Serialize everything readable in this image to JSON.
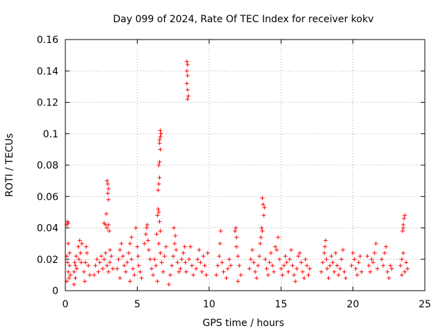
{
  "chart_data": {
    "type": "scatter",
    "title": "Day 099 of 2024, Rate Of TEC Index for receiver kokv",
    "xlabel": "GPS time / hours",
    "ylabel": "ROTI / TECUs",
    "xlim": [
      0,
      25
    ],
    "ylim": [
      0,
      0.16
    ],
    "xticks": [
      0,
      5,
      10,
      15,
      20,
      25
    ],
    "xtick_labels": [
      "0",
      "5",
      "10",
      "15",
      "20",
      "25"
    ],
    "yticks": [
      0,
      0.02,
      0.04,
      0.06,
      0.08,
      0.1,
      0.12,
      0.14,
      0.16
    ],
    "ytick_labels": [
      "0",
      "0.02",
      "0.04",
      "0.06",
      "0.08",
      "0.1",
      "0.12",
      "0.14",
      "0.16"
    ],
    "grid": true,
    "marker": "+",
    "color": "#ff0000",
    "series": [
      {
        "name": "ROTI",
        "points": [
          [
            0.1,
            0.042
          ],
          [
            0.15,
            0.044
          ],
          [
            0.2,
            0.043
          ],
          [
            0.1,
            0.022
          ],
          [
            0.15,
            0.018
          ],
          [
            0.2,
            0.012
          ],
          [
            0.25,
            0.008
          ],
          [
            0.3,
            0.016
          ],
          [
            0.2,
            0.03
          ],
          [
            0.35,
            0.01
          ],
          [
            0.1,
            0.006
          ],
          [
            0.3,
            0.024
          ],
          [
            0.6,
            0.012
          ],
          [
            0.65,
            0.018
          ],
          [
            0.7,
            0.008
          ],
          [
            0.75,
            0.022
          ],
          [
            0.8,
            0.014
          ],
          [
            0.6,
            0.004
          ],
          [
            0.7,
            0.016
          ],
          [
            0.9,
            0.028
          ],
          [
            1.0,
            0.032
          ],
          [
            1.05,
            0.024
          ],
          [
            1.1,
            0.018
          ],
          [
            1.15,
            0.03
          ],
          [
            0.95,
            0.02
          ],
          [
            1.3,
            0.012
          ],
          [
            1.4,
            0.018
          ],
          [
            1.5,
            0.024
          ],
          [
            1.6,
            0.016
          ],
          [
            1.7,
            0.01
          ],
          [
            1.45,
            0.028
          ],
          [
            1.35,
            0.006
          ],
          [
            2.0,
            0.01
          ],
          [
            2.1,
            0.016
          ],
          [
            2.2,
            0.02
          ],
          [
            2.3,
            0.012
          ],
          [
            2.4,
            0.018
          ],
          [
            2.5,
            0.022
          ],
          [
            2.6,
            0.014
          ],
          [
            2.7,
            0.043
          ],
          [
            2.8,
            0.042
          ],
          [
            2.85,
            0.049
          ],
          [
            2.9,
            0.04
          ],
          [
            3.0,
            0.042
          ],
          [
            3.05,
            0.038
          ],
          [
            2.9,
            0.07
          ],
          [
            2.95,
            0.068
          ],
          [
            3.0,
            0.065
          ],
          [
            2.95,
            0.062
          ],
          [
            3.0,
            0.058
          ],
          [
            2.7,
            0.02
          ],
          [
            2.8,
            0.024
          ],
          [
            2.9,
            0.016
          ],
          [
            3.0,
            0.012
          ],
          [
            3.1,
            0.018
          ],
          [
            3.2,
            0.022
          ],
          [
            3.3,
            0.014
          ],
          [
            3.1,
            0.026
          ],
          [
            3.6,
            0.014
          ],
          [
            3.7,
            0.02
          ],
          [
            3.8,
            0.026
          ],
          [
            3.9,
            0.03
          ],
          [
            4.0,
            0.022
          ],
          [
            4.1,
            0.016
          ],
          [
            4.2,
            0.012
          ],
          [
            4.3,
            0.018
          ],
          [
            3.8,
            0.008
          ],
          [
            4.4,
            0.024
          ],
          [
            4.5,
            0.03
          ],
          [
            4.6,
            0.02
          ],
          [
            4.7,
            0.014
          ],
          [
            4.8,
            0.01
          ],
          [
            4.5,
            0.006
          ],
          [
            4.6,
            0.034
          ],
          [
            4.9,
            0.04
          ],
          [
            5.0,
            0.028
          ],
          [
            5.05,
            0.022
          ],
          [
            5.1,
            0.016
          ],
          [
            5.2,
            0.012
          ],
          [
            5.3,
            0.008
          ],
          [
            5.5,
            0.03
          ],
          [
            5.6,
            0.036
          ],
          [
            5.7,
            0.042
          ],
          [
            5.65,
            0.04
          ],
          [
            5.8,
            0.026
          ],
          [
            5.9,
            0.02
          ],
          [
            6.0,
            0.014
          ],
          [
            6.1,
            0.01
          ],
          [
            5.75,
            0.032
          ],
          [
            6.2,
            0.02
          ],
          [
            6.3,
            0.016
          ],
          [
            6.35,
            0.036
          ],
          [
            6.4,
            0.048
          ],
          [
            6.45,
            0.052
          ],
          [
            6.5,
            0.05
          ],
          [
            6.55,
            0.044
          ],
          [
            6.6,
            0.038
          ],
          [
            6.5,
            0.03
          ],
          [
            6.45,
            0.064
          ],
          [
            6.5,
            0.068
          ],
          [
            6.55,
            0.072
          ],
          [
            6.5,
            0.08
          ],
          [
            6.55,
            0.082
          ],
          [
            6.6,
            0.09
          ],
          [
            6.55,
            0.094
          ],
          [
            6.6,
            0.098
          ],
          [
            6.65,
            0.1
          ],
          [
            6.6,
            0.102
          ],
          [
            6.55,
            0.096
          ],
          [
            6.6,
            0.024
          ],
          [
            6.7,
            0.018
          ],
          [
            6.8,
            0.012
          ],
          [
            6.9,
            0.022
          ],
          [
            7.0,
            0.028
          ],
          [
            6.4,
            0.006
          ],
          [
            7.2,
            0.004
          ],
          [
            7.3,
            0.01
          ],
          [
            7.4,
            0.016
          ],
          [
            7.5,
            0.022
          ],
          [
            7.6,
            0.03
          ],
          [
            7.55,
            0.04
          ],
          [
            7.65,
            0.035
          ],
          [
            7.7,
            0.026
          ],
          [
            7.8,
            0.018
          ],
          [
            7.9,
            0.012
          ],
          [
            8.0,
            0.014
          ],
          [
            8.1,
            0.02
          ],
          [
            8.2,
            0.024
          ],
          [
            8.3,
            0.028
          ],
          [
            8.35,
            0.018
          ],
          [
            8.4,
            0.012
          ],
          [
            8.45,
            0.146
          ],
          [
            8.5,
            0.144
          ],
          [
            8.45,
            0.14
          ],
          [
            8.5,
            0.137
          ],
          [
            8.45,
            0.132
          ],
          [
            8.5,
            0.128
          ],
          [
            8.55,
            0.124
          ],
          [
            8.5,
            0.122
          ],
          [
            8.6,
            0.02
          ],
          [
            8.7,
            0.028
          ],
          [
            8.8,
            0.016
          ],
          [
            8.9,
            0.01
          ],
          [
            9.1,
            0.014
          ],
          [
            9.2,
            0.02
          ],
          [
            9.3,
            0.026
          ],
          [
            9.4,
            0.018
          ],
          [
            9.5,
            0.012
          ],
          [
            9.6,
            0.022
          ],
          [
            9.7,
            0.016
          ],
          [
            9.8,
            0.01
          ],
          [
            9.9,
            0.024
          ],
          [
            10.5,
            0.01
          ],
          [
            10.6,
            0.016
          ],
          [
            10.7,
            0.022
          ],
          [
            10.75,
            0.03
          ],
          [
            10.8,
            0.038
          ],
          [
            10.9,
            0.018
          ],
          [
            11.0,
            0.012
          ],
          [
            11.2,
            0.008
          ],
          [
            11.3,
            0.014
          ],
          [
            11.4,
            0.02
          ],
          [
            11.5,
            0.016
          ],
          [
            11.8,
            0.038
          ],
          [
            11.85,
            0.04
          ],
          [
            11.9,
            0.034
          ],
          [
            11.9,
            0.028
          ],
          [
            12.0,
            0.022
          ],
          [
            12.1,
            0.016
          ],
          [
            12.2,
            0.01
          ],
          [
            12.0,
            0.006
          ],
          [
            12.8,
            0.014
          ],
          [
            12.9,
            0.02
          ],
          [
            13.0,
            0.026
          ],
          [
            13.1,
            0.018
          ],
          [
            13.2,
            0.012
          ],
          [
            13.3,
            0.008
          ],
          [
            13.4,
            0.016
          ],
          [
            13.5,
            0.022
          ],
          [
            13.55,
            0.03
          ],
          [
            13.6,
            0.034
          ],
          [
            13.7,
            0.038
          ],
          [
            13.65,
            0.04
          ],
          [
            13.8,
            0.048
          ],
          [
            13.75,
            0.055
          ],
          [
            13.7,
            0.059
          ],
          [
            13.85,
            0.053
          ],
          [
            13.9,
            0.02
          ],
          [
            14.0,
            0.014
          ],
          [
            14.1,
            0.01
          ],
          [
            14.2,
            0.018
          ],
          [
            14.3,
            0.024
          ],
          [
            14.4,
            0.016
          ],
          [
            14.5,
            0.012
          ],
          [
            14.6,
            0.028
          ],
          [
            14.7,
            0.026
          ],
          [
            14.8,
            0.034
          ],
          [
            14.9,
            0.02
          ],
          [
            15.0,
            0.014
          ],
          [
            15.1,
            0.01
          ],
          [
            15.2,
            0.016
          ],
          [
            15.3,
            0.022
          ],
          [
            15.4,
            0.018
          ],
          [
            15.5,
            0.012
          ],
          [
            15.6,
            0.02
          ],
          [
            15.7,
            0.026
          ],
          [
            15.8,
            0.016
          ],
          [
            15.9,
            0.01
          ],
          [
            16.0,
            0.006
          ],
          [
            16.1,
            0.014
          ],
          [
            16.2,
            0.022
          ],
          [
            16.3,
            0.024
          ],
          [
            16.4,
            0.018
          ],
          [
            16.5,
            0.012
          ],
          [
            16.6,
            0.008
          ],
          [
            16.7,
            0.02
          ],
          [
            16.8,
            0.016
          ],
          [
            16.9,
            0.01
          ],
          [
            17.0,
            0.014
          ],
          [
            17.8,
            0.012
          ],
          [
            17.9,
            0.018
          ],
          [
            18.0,
            0.024
          ],
          [
            18.05,
            0.028
          ],
          [
            18.1,
            0.032
          ],
          [
            18.15,
            0.02
          ],
          [
            18.2,
            0.014
          ],
          [
            18.3,
            0.008
          ],
          [
            18.4,
            0.016
          ],
          [
            18.5,
            0.022
          ],
          [
            18.6,
            0.018
          ],
          [
            18.7,
            0.012
          ],
          [
            18.8,
            0.024
          ],
          [
            18.9,
            0.016
          ],
          [
            19.0,
            0.01
          ],
          [
            19.1,
            0.014
          ],
          [
            19.2,
            0.02
          ],
          [
            19.3,
            0.026
          ],
          [
            19.4,
            0.012
          ],
          [
            19.5,
            0.008
          ],
          [
            19.9,
            0.016
          ],
          [
            20.0,
            0.024
          ],
          [
            20.1,
            0.02
          ],
          [
            20.2,
            0.014
          ],
          [
            20.3,
            0.01
          ],
          [
            20.4,
            0.018
          ],
          [
            20.5,
            0.022
          ],
          [
            20.6,
            0.012
          ],
          [
            21.0,
            0.022
          ],
          [
            21.1,
            0.016
          ],
          [
            21.2,
            0.012
          ],
          [
            21.3,
            0.02
          ],
          [
            21.4,
            0.018
          ],
          [
            21.5,
            0.024
          ],
          [
            21.6,
            0.03
          ],
          [
            21.7,
            0.014
          ],
          [
            22.0,
            0.02
          ],
          [
            22.1,
            0.016
          ],
          [
            22.2,
            0.024
          ],
          [
            22.3,
            0.028
          ],
          [
            22.4,
            0.012
          ],
          [
            22.5,
            0.008
          ],
          [
            22.6,
            0.016
          ],
          [
            22.7,
            0.014
          ],
          [
            23.3,
            0.016
          ],
          [
            23.4,
            0.02
          ],
          [
            23.5,
            0.024
          ],
          [
            23.45,
            0.038
          ],
          [
            23.5,
            0.042
          ],
          [
            23.55,
            0.046
          ],
          [
            23.6,
            0.048
          ],
          [
            23.5,
            0.04
          ],
          [
            23.6,
            0.012
          ],
          [
            23.7,
            0.018
          ],
          [
            23.8,
            0.014
          ],
          [
            23.4,
            0.01
          ]
        ]
      }
    ]
  }
}
